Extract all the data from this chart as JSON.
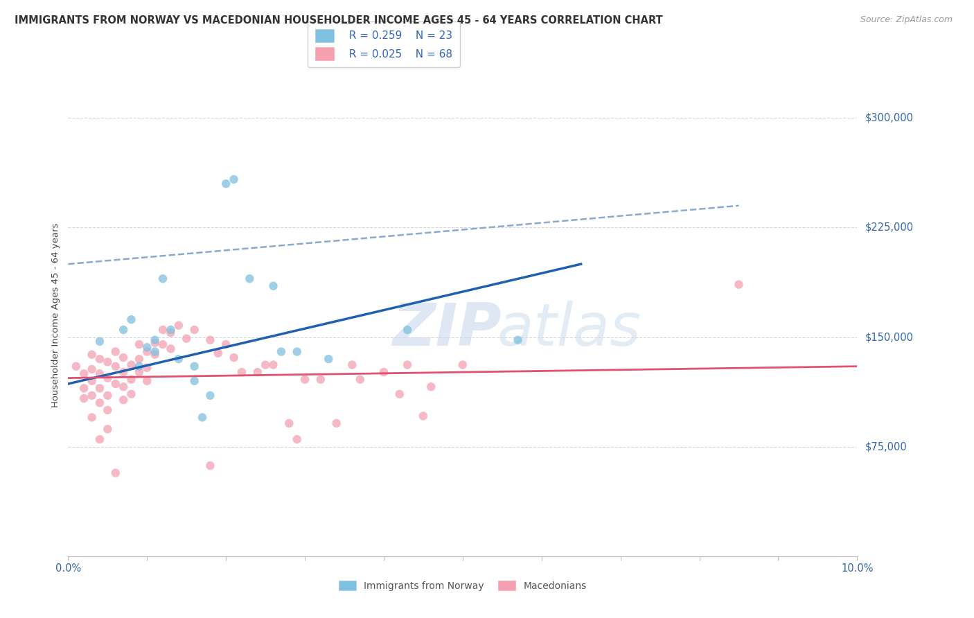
{
  "title": "IMMIGRANTS FROM NORWAY VS MACEDONIAN HOUSEHOLDER INCOME AGES 45 - 64 YEARS CORRELATION CHART",
  "source": "Source: ZipAtlas.com",
  "ylabel": "Householder Income Ages 45 - 64 years",
  "xlim": [
    0.0,
    0.1
  ],
  "ylim": [
    0,
    330000
  ],
  "ytick_positions": [
    75000,
    150000,
    225000,
    300000
  ],
  "ytick_labels": [
    "$75,000",
    "$150,000",
    "$225,000",
    "$300,000"
  ],
  "xtick_positions": [
    0.0,
    0.01,
    0.02,
    0.03,
    0.04,
    0.05,
    0.06,
    0.07,
    0.08,
    0.09,
    0.1
  ],
  "xtick_labels": [
    "0.0%",
    "",
    "",
    "",
    "",
    "",
    "",
    "",
    "",
    "",
    "10.0%"
  ],
  "legend_r1": "R = 0.259",
  "legend_n1": "N = 23",
  "legend_r2": "R = 0.025",
  "legend_n2": "N = 68",
  "norway_color": "#7fbfdf",
  "macedonian_color": "#f4a0b0",
  "norway_line_color": "#2060b0",
  "macedonian_line_color": "#e05070",
  "dashed_line_color": "#88aacc",
  "grid_color": "#d0d8e0",
  "norway_points": [
    [
      0.004,
      147000
    ],
    [
      0.007,
      155000
    ],
    [
      0.008,
      162000
    ],
    [
      0.009,
      130000
    ],
    [
      0.01,
      143000
    ],
    [
      0.011,
      148000
    ],
    [
      0.011,
      140000
    ],
    [
      0.012,
      190000
    ],
    [
      0.013,
      155000
    ],
    [
      0.014,
      135000
    ],
    [
      0.016,
      120000
    ],
    [
      0.016,
      130000
    ],
    [
      0.017,
      95000
    ],
    [
      0.018,
      110000
    ],
    [
      0.02,
      255000
    ],
    [
      0.021,
      258000
    ],
    [
      0.023,
      190000
    ],
    [
      0.026,
      185000
    ],
    [
      0.027,
      140000
    ],
    [
      0.029,
      140000
    ],
    [
      0.033,
      135000
    ],
    [
      0.043,
      155000
    ],
    [
      0.057,
      148000
    ]
  ],
  "macedonian_points": [
    [
      0.001,
      130000
    ],
    [
      0.002,
      125000
    ],
    [
      0.002,
      115000
    ],
    [
      0.002,
      108000
    ],
    [
      0.003,
      138000
    ],
    [
      0.003,
      128000
    ],
    [
      0.003,
      120000
    ],
    [
      0.003,
      110000
    ],
    [
      0.003,
      95000
    ],
    [
      0.004,
      135000
    ],
    [
      0.004,
      125000
    ],
    [
      0.004,
      115000
    ],
    [
      0.004,
      105000
    ],
    [
      0.004,
      80000
    ],
    [
      0.005,
      133000
    ],
    [
      0.005,
      122000
    ],
    [
      0.005,
      110000
    ],
    [
      0.005,
      100000
    ],
    [
      0.005,
      87000
    ],
    [
      0.006,
      140000
    ],
    [
      0.006,
      130000
    ],
    [
      0.006,
      118000
    ],
    [
      0.006,
      57000
    ],
    [
      0.007,
      136000
    ],
    [
      0.007,
      126000
    ],
    [
      0.007,
      116000
    ],
    [
      0.007,
      107000
    ],
    [
      0.008,
      131000
    ],
    [
      0.008,
      121000
    ],
    [
      0.008,
      111000
    ],
    [
      0.009,
      145000
    ],
    [
      0.009,
      135000
    ],
    [
      0.009,
      126000
    ],
    [
      0.01,
      140000
    ],
    [
      0.01,
      129000
    ],
    [
      0.01,
      120000
    ],
    [
      0.011,
      146000
    ],
    [
      0.011,
      138000
    ],
    [
      0.012,
      155000
    ],
    [
      0.012,
      145000
    ],
    [
      0.013,
      153000
    ],
    [
      0.013,
      142000
    ],
    [
      0.014,
      158000
    ],
    [
      0.015,
      149000
    ],
    [
      0.016,
      155000
    ],
    [
      0.018,
      148000
    ],
    [
      0.018,
      62000
    ],
    [
      0.019,
      139000
    ],
    [
      0.02,
      145000
    ],
    [
      0.021,
      136000
    ],
    [
      0.022,
      126000
    ],
    [
      0.024,
      126000
    ],
    [
      0.025,
      131000
    ],
    [
      0.026,
      131000
    ],
    [
      0.028,
      91000
    ],
    [
      0.029,
      80000
    ],
    [
      0.03,
      121000
    ],
    [
      0.032,
      121000
    ],
    [
      0.034,
      91000
    ],
    [
      0.036,
      131000
    ],
    [
      0.037,
      121000
    ],
    [
      0.04,
      126000
    ],
    [
      0.042,
      111000
    ],
    [
      0.043,
      131000
    ],
    [
      0.045,
      96000
    ],
    [
      0.046,
      116000
    ],
    [
      0.05,
      131000
    ],
    [
      0.085,
      186000
    ]
  ],
  "norway_trend_x": [
    0.0,
    0.065
  ],
  "norway_trend_y": [
    118000,
    200000
  ],
  "macedonian_trend_x": [
    0.0,
    0.1
  ],
  "macedonian_trend_y": [
    122000,
    130000
  ],
  "dashed_trend_x": [
    0.0,
    0.085
  ],
  "dashed_trend_y": [
    200000,
    240000
  ],
  "title_fontsize": 10.5,
  "axis_fontsize": 9.5,
  "tick_fontsize": 10.5,
  "legend_fontsize": 11
}
